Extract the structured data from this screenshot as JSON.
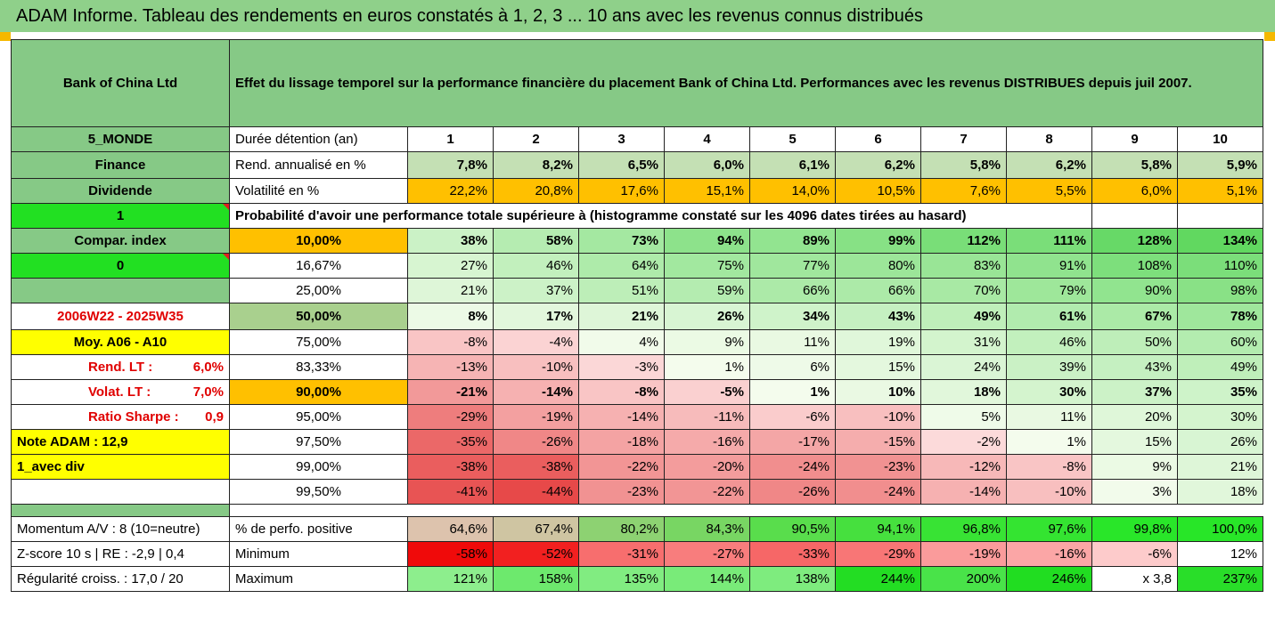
{
  "title": "ADAM Informe. Tableau des rendements en euros constatés à 1, 2, 3 ... 10 ans avec les revenus connus distribués",
  "company": "Bank of China Ltd",
  "header_text": "Effet du lissage temporel sur la performance financière du placement Bank of China Ltd. Performances avec les revenus DISTRIBUES depuis juil 2007.",
  "left": {
    "zone": "5_MONDE",
    "sector": "Finance",
    "dividend": "Dividende",
    "one": "1",
    "compar": "Compar. index",
    "zero": "0",
    "period": "2006W22 - 2025W35",
    "moy": "Moy. A06 - A10",
    "rend_lt_label": "Rend. LT :",
    "rend_lt_value": "6,0%",
    "volat_lt_label": "Volat. LT :",
    "volat_lt_value": "7,0%",
    "sharpe_label": "Ratio Sharpe :",
    "sharpe_value": "0,9",
    "note": "Note ADAM : 12,9",
    "avec_div": "1_avec div",
    "momentum": "Momentum A/V : 8 (10=neutre)",
    "zscore": "Z-score 10 s  | RE : -2,9 | 0,4",
    "regularite": "Régularité croiss. : 17,0 / 20"
  },
  "row_labels": {
    "duree": "Durée détention (an)",
    "rend": "Rend. annualisé en %",
    "vol": "Volatilité en %",
    "proba": "Probabilité d'avoir une performance totale supérieure à (histogramme constaté sur les 4096 dates tirées au hasard)",
    "perf_pos": "% de perfo. positive",
    "minimum": "Minimum",
    "maximum": "Maximum"
  },
  "years": [
    "1",
    "2",
    "3",
    "4",
    "5",
    "6",
    "7",
    "8",
    "9",
    "10"
  ],
  "rend": [
    "7,8%",
    "8,2%",
    "6,5%",
    "6,0%",
    "6,1%",
    "6,2%",
    "5,8%",
    "6,2%",
    "5,8%",
    "5,9%"
  ],
  "vol": [
    "22,2%",
    "20,8%",
    "17,6%",
    "15,1%",
    "14,0%",
    "10,5%",
    "7,6%",
    "5,5%",
    "6,0%",
    "5,1%"
  ],
  "quantiles": [
    {
      "p": "10,00%",
      "v": [
        "38%",
        "58%",
        "73%",
        "94%",
        "89%",
        "99%",
        "112%",
        "111%",
        "128%",
        "134%"
      ]
    },
    {
      "p": "16,67%",
      "v": [
        "27%",
        "46%",
        "64%",
        "75%",
        "77%",
        "80%",
        "83%",
        "91%",
        "108%",
        "110%"
      ]
    },
    {
      "p": "25,00%",
      "v": [
        "21%",
        "37%",
        "51%",
        "59%",
        "66%",
        "66%",
        "70%",
        "79%",
        "90%",
        "98%"
      ]
    },
    {
      "p": "50,00%",
      "v": [
        "8%",
        "17%",
        "21%",
        "26%",
        "34%",
        "43%",
        "49%",
        "61%",
        "67%",
        "78%"
      ]
    },
    {
      "p": "75,00%",
      "v": [
        "-8%",
        "-4%",
        "4%",
        "9%",
        "11%",
        "19%",
        "31%",
        "46%",
        "50%",
        "60%"
      ]
    },
    {
      "p": "83,33%",
      "v": [
        "-13%",
        "-10%",
        "-3%",
        "1%",
        "6%",
        "15%",
        "24%",
        "39%",
        "43%",
        "49%"
      ]
    },
    {
      "p": "90,00%",
      "v": [
        "-21%",
        "-14%",
        "-8%",
        "-5%",
        "1%",
        "10%",
        "18%",
        "30%",
        "37%",
        "35%"
      ]
    },
    {
      "p": "95,00%",
      "v": [
        "-29%",
        "-19%",
        "-14%",
        "-11%",
        "-6%",
        "-10%",
        "5%",
        "11%",
        "20%",
        "30%"
      ]
    },
    {
      "p": "97,50%",
      "v": [
        "-35%",
        "-26%",
        "-18%",
        "-16%",
        "-17%",
        "-15%",
        "-2%",
        "1%",
        "15%",
        "26%"
      ]
    },
    {
      "p": "99,00%",
      "v": [
        "-38%",
        "-38%",
        "-22%",
        "-20%",
        "-24%",
        "-23%",
        "-12%",
        "-8%",
        "9%",
        "21%"
      ]
    },
    {
      "p": "99,50%",
      "v": [
        "-41%",
        "-44%",
        "-23%",
        "-22%",
        "-26%",
        "-24%",
        "-14%",
        "-10%",
        "3%",
        "18%"
      ]
    }
  ],
  "perf_pos": [
    "64,6%",
    "67,4%",
    "80,2%",
    "84,3%",
    "90,5%",
    "94,1%",
    "96,8%",
    "97,6%",
    "99,8%",
    "100,0%"
  ],
  "minimum": [
    "-58%",
    "-52%",
    "-31%",
    "-27%",
    "-33%",
    "-29%",
    "-19%",
    "-16%",
    "-6%",
    "12%"
  ],
  "maximum": [
    "121%",
    "158%",
    "135%",
    "144%",
    "138%",
    "244%",
    "200%",
    "246%",
    "x 3,8",
    "237%"
  ]
}
